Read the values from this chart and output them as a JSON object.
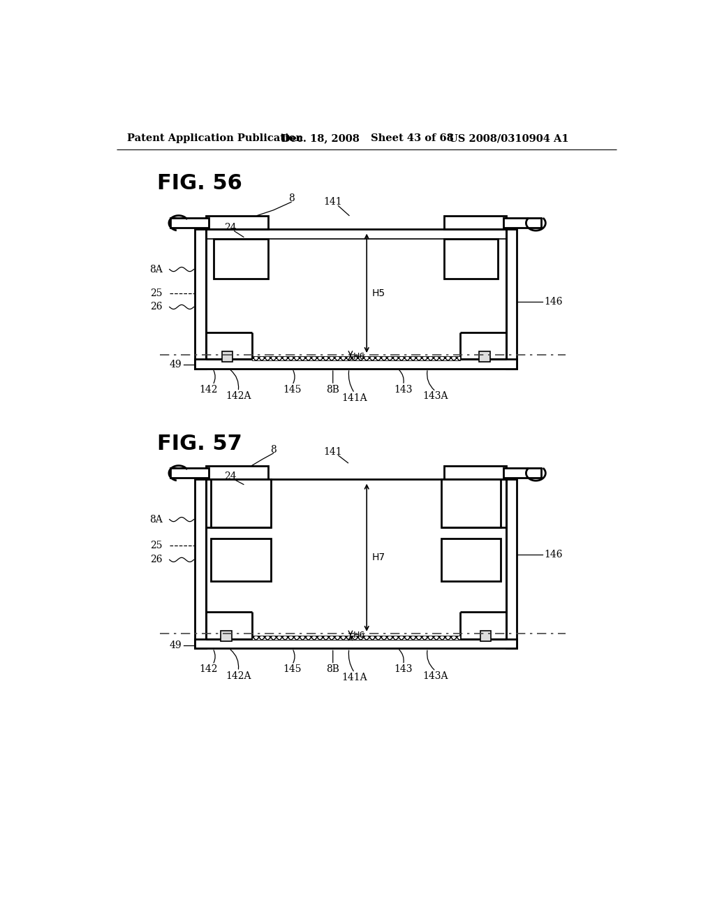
{
  "bg_color": "#ffffff",
  "header_text": "Patent Application Publication",
  "header_date": "Dec. 18, 2008",
  "header_sheet": "Sheet 43 of 68",
  "header_patent": "US 2008/0310904 A1",
  "fig56_label": "FIG. 56",
  "fig57_label": "FIG. 57",
  "line_color": "#000000"
}
